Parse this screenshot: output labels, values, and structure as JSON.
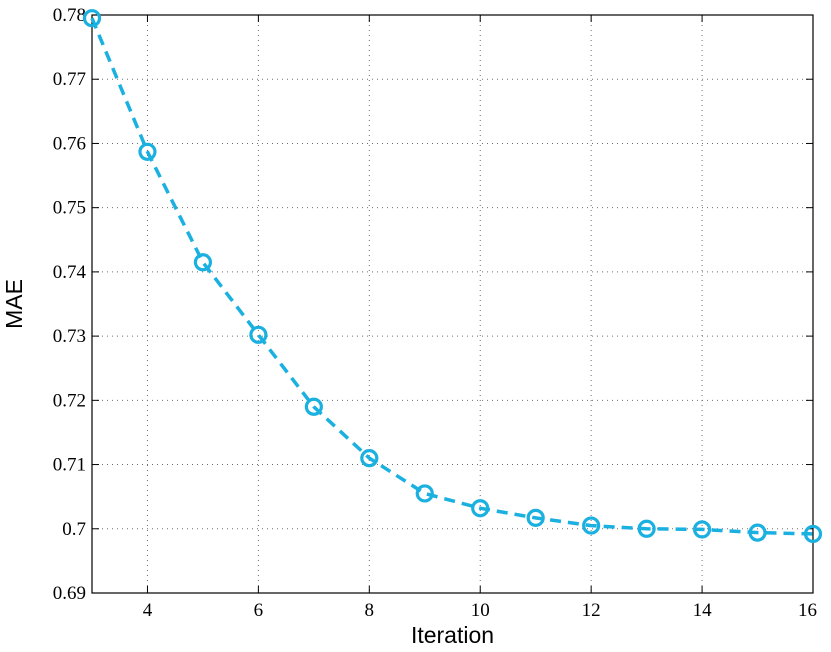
{
  "chart_data": {
    "type": "line",
    "title": "",
    "xlabel": "Iteration",
    "ylabel": "MAE",
    "xlim": [
      3,
      16
    ],
    "ylim": [
      0.69,
      0.78
    ],
    "x_ticks": [
      4,
      6,
      8,
      10,
      12,
      14,
      16
    ],
    "x_tick_labels": [
      "4",
      "6",
      "8",
      "10",
      "12",
      "14",
      "16"
    ],
    "y_ticks": [
      0.69,
      0.7,
      0.71,
      0.72,
      0.73,
      0.74,
      0.75,
      0.76,
      0.77,
      0.78
    ],
    "y_tick_labels": [
      "0.69",
      "0.7",
      "0.71",
      "0.72",
      "0.73",
      "0.74",
      "0.75",
      "0.76",
      "0.77",
      "0.78"
    ],
    "grid": true,
    "series": [
      {
        "color": "#1ab0e0",
        "line_style": "dashed",
        "marker": "circle",
        "x": [
          3,
          4,
          5,
          6,
          7,
          8,
          9,
          10,
          11,
          12,
          13,
          14,
          15,
          16
        ],
        "y": [
          0.7795,
          0.7587,
          0.7415,
          0.7302,
          0.719,
          0.711,
          0.7055,
          0.7032,
          0.7017,
          0.7005,
          0.7,
          0.6999,
          0.6994,
          0.6992
        ]
      }
    ]
  }
}
